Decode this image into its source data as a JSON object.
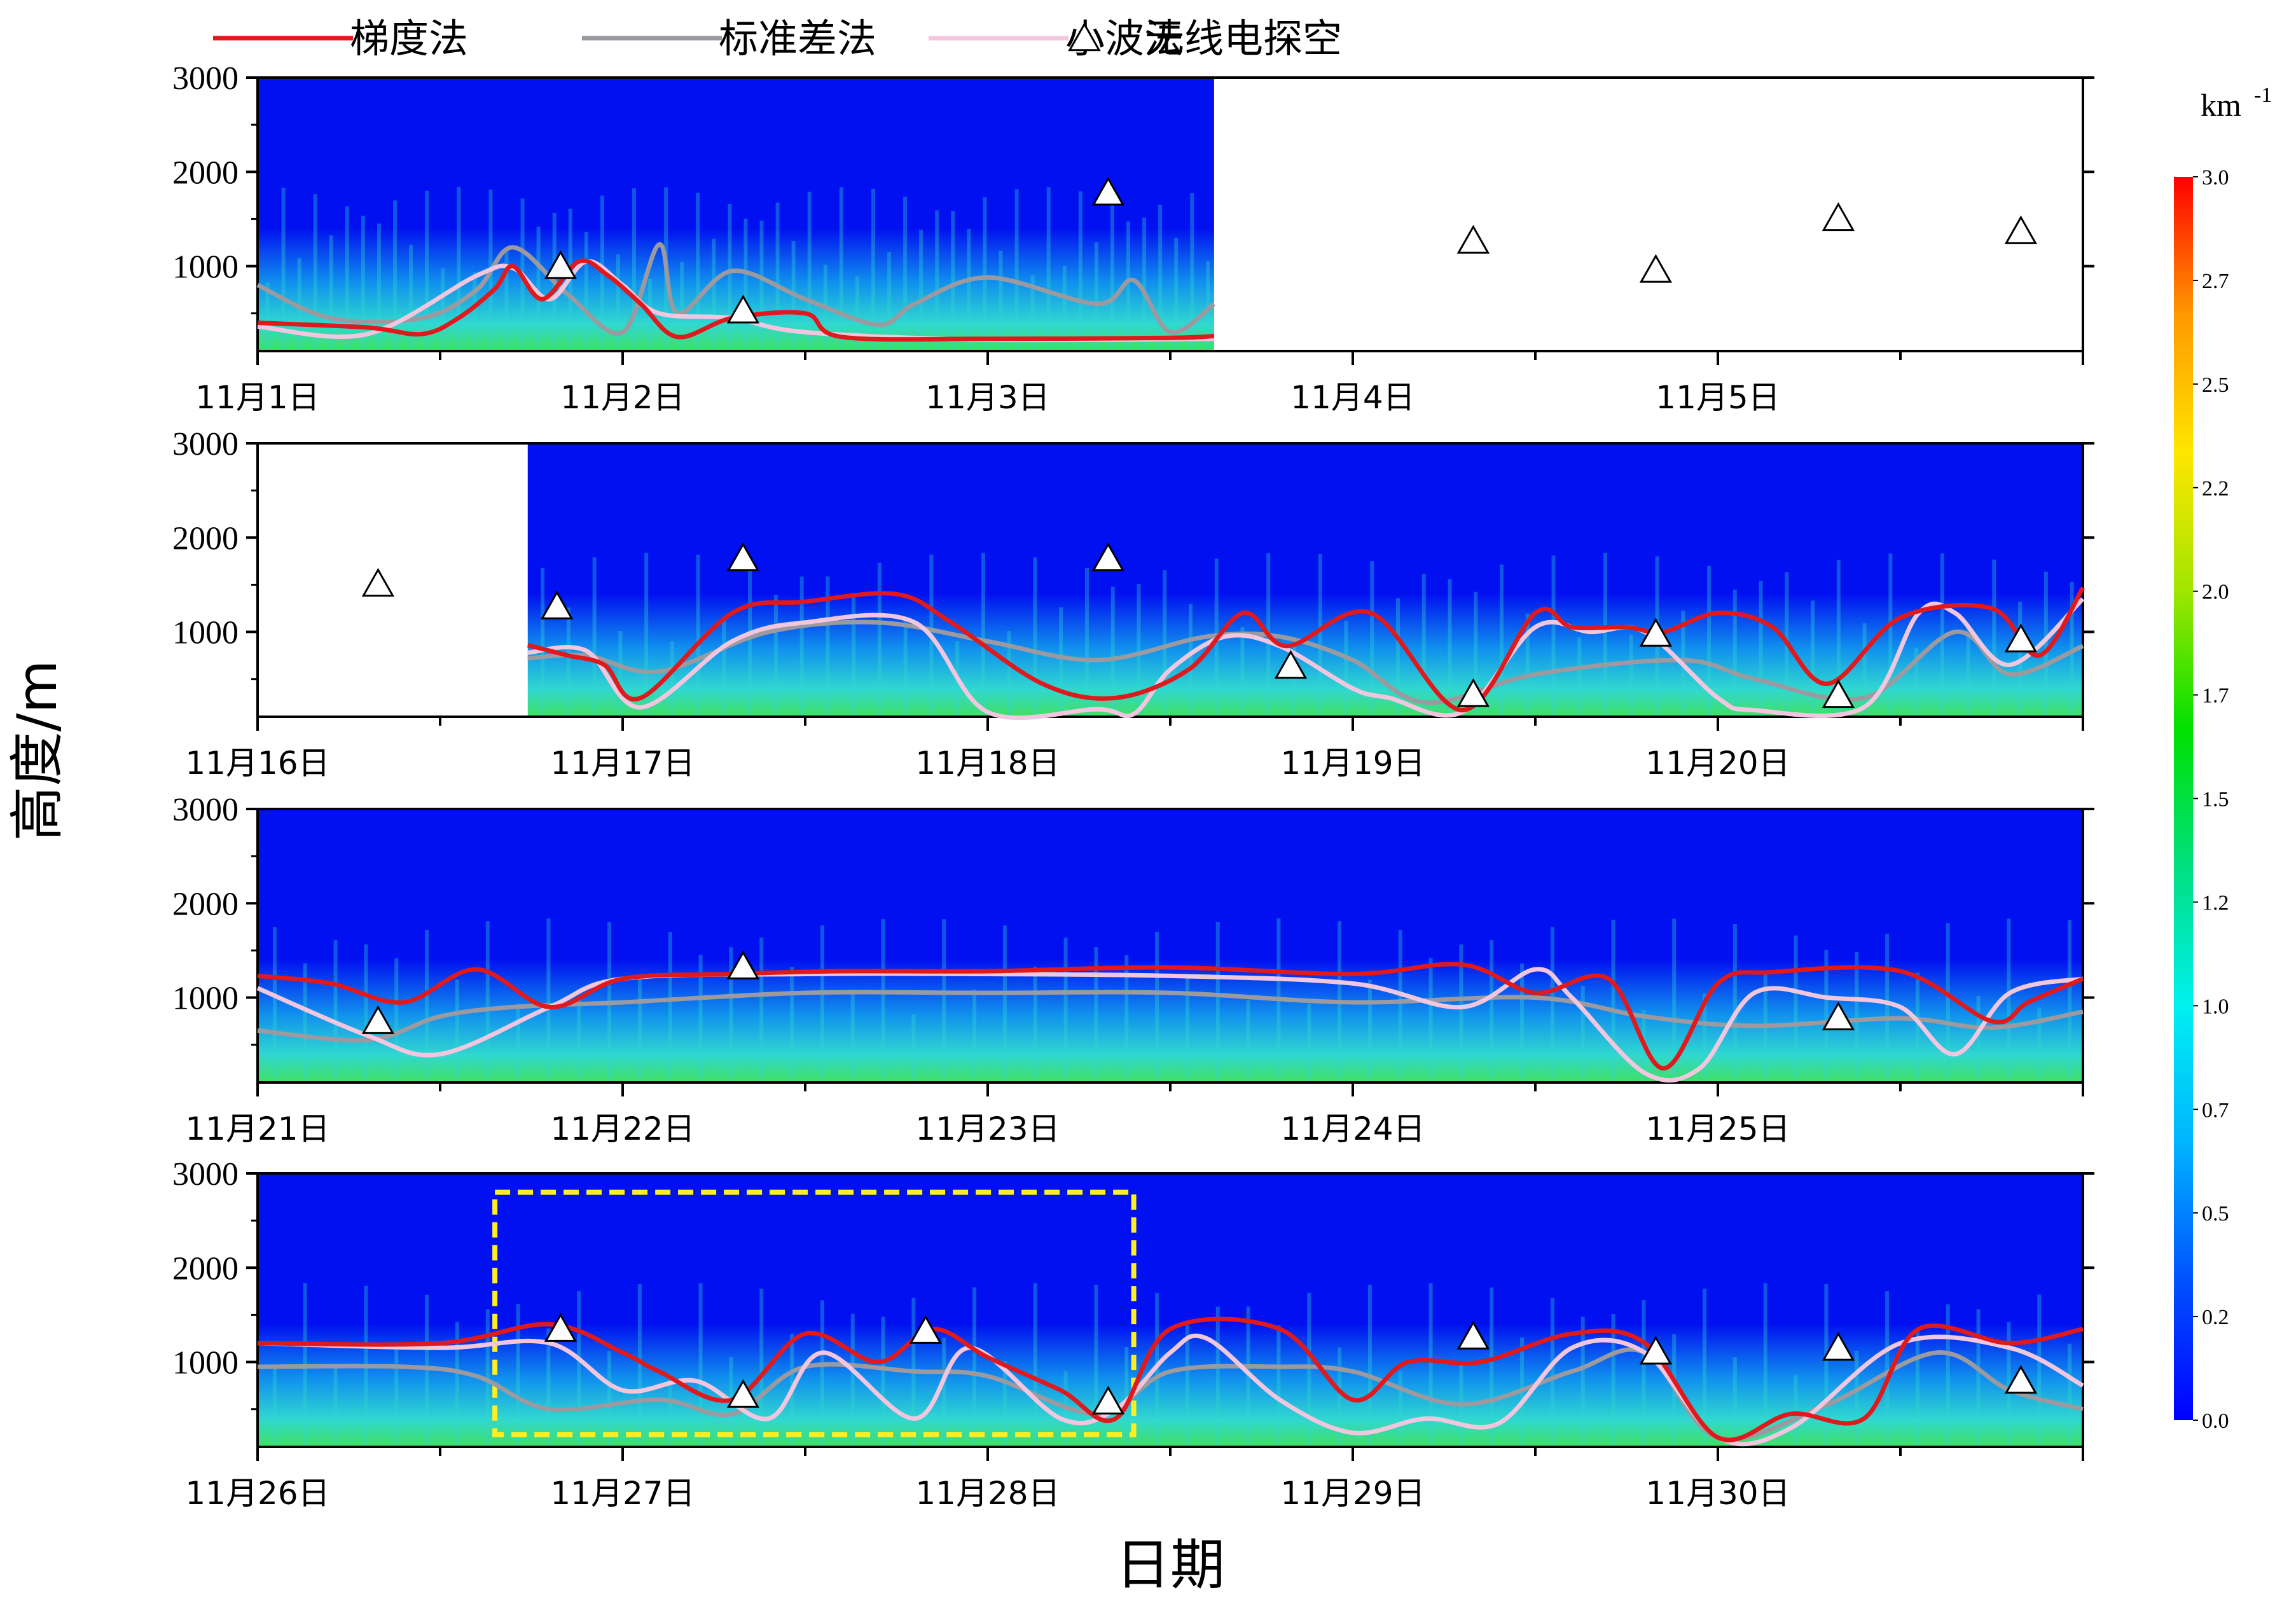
{
  "legend": [
    {
      "label": "梯度法",
      "color": "#e0191c",
      "kind": "line"
    },
    {
      "label": "标准差法",
      "color": "#9a9aa0",
      "kind": "line"
    },
    {
      "label": "小波法",
      "color": "#f2c6df",
      "kind": "line"
    },
    {
      "label": "无线电探空",
      "color": "#000000",
      "kind": "triangle"
    }
  ],
  "xlabel": "日期",
  "ylabel": "高度/m",
  "colorbar": {
    "unit": "km",
    "unit_exp": "-1",
    "ticks": [
      "3.0",
      "2.7",
      "2.5",
      "2.2",
      "2.0",
      "1.7",
      "1.5",
      "1.2",
      "1.0",
      "0.7",
      "0.5",
      "0.2",
      "0.0"
    ],
    "colors": [
      "#0000ff",
      "#0050ff",
      "#00b4ff",
      "#00f0f0",
      "#00e080",
      "#00e000",
      "#a0e600",
      "#ffe600",
      "#ff9900",
      "#ff0000"
    ]
  },
  "colors": {
    "high_bg": "#0010f0",
    "mid_bg": "#1090ee",
    "aerosol": "#30d8d0",
    "dense": "#40e060",
    "box": "#ffee22"
  },
  "chart_data": [
    {
      "type": "line",
      "panel": 1,
      "x_ticks": [
        "11月1日",
        "11月2日",
        "11月3日",
        "11月4日",
        "11月5日"
      ],
      "xlim": [
        0,
        5
      ],
      "ylim": [
        100,
        3000
      ],
      "y_ticks": [
        "3000",
        "2000",
        "1000"
      ],
      "data_end_day": 2.62,
      "series": [
        {
          "name": "梯度法",
          "x": [
            0,
            0.3,
            0.45,
            0.55,
            0.65,
            0.7,
            0.78,
            0.88,
            0.96,
            1.05,
            1.15,
            1.3,
            1.5,
            1.6,
            2.0,
            2.5,
            2.62
          ],
          "y": [
            400,
            350,
            280,
            450,
            760,
            1000,
            650,
            1050,
            900,
            600,
            250,
            450,
            500,
            250,
            230,
            240,
            260
          ]
        },
        {
          "name": "标准差法",
          "x": [
            0,
            0.2,
            0.45,
            0.6,
            0.7,
            0.85,
            1.0,
            1.1,
            1.15,
            1.3,
            1.5,
            1.7,
            1.8,
            2.0,
            2.3,
            2.4,
            2.5,
            2.62
          ],
          "y": [
            800,
            450,
            450,
            750,
            1200,
            700,
            300,
            1230,
            500,
            950,
            650,
            380,
            600,
            880,
            600,
            850,
            300,
            600
          ]
        },
        {
          "name": "小波法",
          "x": [
            0,
            0.3,
            0.6,
            0.7,
            0.8,
            0.9,
            1.0,
            1.1,
            1.3,
            1.5,
            2.0,
            2.62
          ],
          "y": [
            360,
            280,
            900,
            980,
            650,
            1050,
            800,
            500,
            450,
            300,
            220,
            230
          ]
        },
        {
          "name": "无线电探空",
          "x": [
            0.83,
            1.33,
            2.33,
            3.33,
            3.83,
            4.33,
            4.83
          ],
          "y": [
            1000,
            530,
            1780,
            1270,
            960,
            1510,
            1370
          ]
        }
      ]
    },
    {
      "type": "line",
      "panel": 2,
      "x_ticks": [
        "11月16日",
        "11月17日",
        "11月18日",
        "11月19日",
        "11月20日"
      ],
      "xlim": [
        0,
        5
      ],
      "ylim": [
        100,
        3000
      ],
      "y_ticks": [
        "3000",
        "2000",
        "1000"
      ],
      "data_start_day": 0.74,
      "series": [
        {
          "name": "梯度法",
          "x": [
            0.74,
            0.85,
            0.95,
            1.05,
            1.3,
            1.5,
            1.75,
            1.9,
            2.15,
            2.35,
            2.55,
            2.7,
            2.82,
            3.05,
            3.3,
            3.5,
            3.6,
            3.75,
            3.85,
            4.0,
            4.15,
            4.3,
            4.5,
            4.75,
            4.88,
            5.0
          ],
          "y": [
            860,
            750,
            650,
            300,
            1200,
            1320,
            1400,
            1100,
            450,
            300,
            600,
            1200,
            850,
            1200,
            170,
            1200,
            1050,
            1050,
            1000,
            1200,
            1050,
            450,
            1150,
            1250,
            750,
            1470
          ]
        },
        {
          "name": "标准差法",
          "x": [
            0.74,
            0.9,
            1.1,
            1.4,
            1.7,
            2.0,
            2.3,
            2.6,
            2.8,
            3.0,
            3.2,
            3.5,
            3.9,
            4.1,
            4.4,
            4.65,
            4.8,
            5.0
          ],
          "y": [
            720,
            750,
            580,
            1000,
            1100,
            900,
            700,
            950,
            950,
            700,
            250,
            550,
            700,
            500,
            300,
            1000,
            550,
            850
          ]
        },
        {
          "name": "小波法",
          "x": [
            0.74,
            0.9,
            1.05,
            1.3,
            1.5,
            1.8,
            2.0,
            2.3,
            2.4,
            2.5,
            2.65,
            2.8,
            3.0,
            3.1,
            3.3,
            3.5,
            3.65,
            3.8,
            4.0,
            4.1,
            4.4,
            4.55,
            4.65,
            4.8,
            5.0
          ],
          "y": [
            780,
            800,
            200,
            900,
            1100,
            1100,
            150,
            180,
            130,
            600,
            950,
            850,
            400,
            300,
            150,
            1050,
            1000,
            1000,
            300,
            170,
            200,
            1200,
            1200,
            650,
            1350
          ]
        },
        {
          "name": "无线电探空",
          "x": [
            0.33,
            0.82,
            1.33,
            2.33,
            2.83,
            3.33,
            3.83,
            4.33,
            4.83
          ],
          "y": [
            1510,
            1270,
            1780,
            1780,
            640,
            340,
            980,
            330,
            920
          ]
        }
      ]
    },
    {
      "type": "line",
      "panel": 3,
      "x_ticks": [
        "11月21日",
        "11月22日",
        "11月23日",
        "11月24日",
        "11月25日"
      ],
      "xlim": [
        0,
        5
      ],
      "ylim": [
        100,
        3000
      ],
      "y_ticks": [
        "3000",
        "2000",
        "1000"
      ],
      "series": [
        {
          "name": "梯度法",
          "x": [
            0,
            0.2,
            0.4,
            0.6,
            0.8,
            1.0,
            1.3,
            1.6,
            2.0,
            2.5,
            3.0,
            3.3,
            3.5,
            3.7,
            3.85,
            4.0,
            4.15,
            4.5,
            4.75,
            4.85,
            5.0
          ],
          "y": [
            1230,
            1150,
            950,
            1300,
            900,
            1200,
            1250,
            1280,
            1280,
            1320,
            1250,
            1350,
            1050,
            1200,
            250,
            1150,
            1270,
            1280,
            750,
            950,
            1200
          ]
        },
        {
          "name": "标准差法",
          "x": [
            0,
            0.3,
            0.5,
            0.7,
            1.0,
            1.5,
            2.0,
            2.5,
            3.0,
            3.5,
            3.8,
            4.1,
            4.5,
            4.75,
            5.0
          ],
          "y": [
            650,
            550,
            800,
            900,
            950,
            1050,
            1050,
            1050,
            950,
            1000,
            800,
            700,
            780,
            680,
            850
          ]
        },
        {
          "name": "小波法",
          "x": [
            0,
            0.3,
            0.5,
            0.8,
            1.0,
            1.5,
            2.0,
            2.5,
            3.0,
            3.3,
            3.5,
            3.6,
            3.8,
            3.95,
            4.1,
            4.3,
            4.5,
            4.65,
            4.8,
            5.0
          ],
          "y": [
            1100,
            600,
            400,
            900,
            1200,
            1250,
            1250,
            1230,
            1150,
            900,
            1300,
            1000,
            200,
            250,
            1050,
            1000,
            900,
            400,
            1050,
            1200
          ]
        },
        {
          "name": "无线电探空",
          "x": [
            0.33,
            1.33,
            4.33
          ],
          "y": [
            750,
            1330,
            790
          ]
        }
      ]
    },
    {
      "type": "line",
      "panel": 4,
      "x_ticks": [
        "11月26日",
        "11月27日",
        "11月28日",
        "11月29日",
        "11月30日"
      ],
      "xlim": [
        0,
        5
      ],
      "ylim": [
        100,
        3000
      ],
      "y_ticks": [
        "3000",
        "2000",
        "1000"
      ],
      "box": {
        "x": [
          0.65,
          2.4
        ],
        "y": [
          230,
          2800
        ]
      },
      "series": [
        {
          "name": "梯度法",
          "x": [
            0,
            0.5,
            0.8,
            1.0,
            1.1,
            1.3,
            1.5,
            1.7,
            1.85,
            2.0,
            2.2,
            2.35,
            2.5,
            2.8,
            3.0,
            3.15,
            3.35,
            3.6,
            3.8,
            4.0,
            4.2,
            4.4,
            4.55,
            4.8,
            5.0
          ],
          "y": [
            1200,
            1200,
            1400,
            1100,
            900,
            600,
            1300,
            1000,
            1350,
            1050,
            700,
            400,
            1350,
            1350,
            600,
            1000,
            1000,
            1300,
            1200,
            200,
            450,
            400,
            1350,
            1200,
            1350
          ]
        },
        {
          "name": "标准差法",
          "x": [
            0,
            0.4,
            0.6,
            0.8,
            1.1,
            1.3,
            1.5,
            1.8,
            2.0,
            2.3,
            2.5,
            2.8,
            3.0,
            3.3,
            3.6,
            3.8,
            4.0,
            4.3,
            4.6,
            4.8,
            5.0
          ],
          "y": [
            950,
            950,
            850,
            500,
            600,
            450,
            950,
            900,
            850,
            450,
            900,
            950,
            900,
            550,
            900,
            1100,
            200,
            550,
            1100,
            700,
            500
          ]
        },
        {
          "name": "小波法",
          "x": [
            0,
            0.5,
            0.8,
            1.0,
            1.2,
            1.4,
            1.55,
            1.8,
            1.95,
            2.2,
            2.35,
            2.5,
            2.6,
            2.8,
            3.0,
            3.2,
            3.4,
            3.6,
            3.8,
            4.0,
            4.2,
            4.5,
            4.8,
            5.0
          ],
          "y": [
            1200,
            1150,
            1200,
            700,
            800,
            400,
            1100,
            400,
            1150,
            400,
            500,
            1100,
            1250,
            600,
            250,
            400,
            350,
            1150,
            1100,
            200,
            300,
            1200,
            1150,
            750
          ]
        },
        {
          "name": "无线电探空",
          "x": [
            0.83,
            1.33,
            1.83,
            2.33,
            3.33,
            3.83,
            4.33,
            4.83
          ],
          "y": [
            1350,
            650,
            1330,
            580,
            1270,
            1110,
            1150,
            800
          ]
        }
      ]
    }
  ]
}
